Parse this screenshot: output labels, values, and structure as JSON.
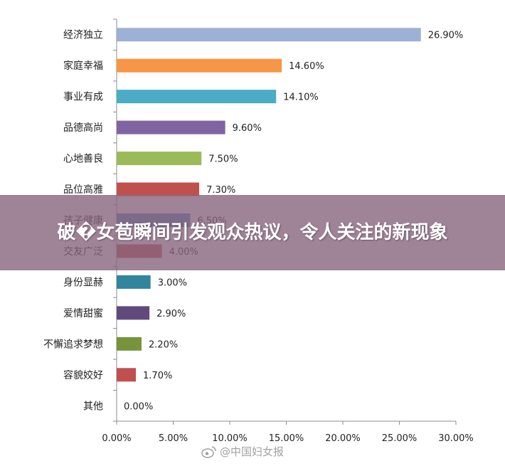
{
  "banner": {
    "title": "破�女苞瞬间引发观众热议，令人关注的新现象"
  },
  "watermark": {
    "text": "@中国妇女报",
    "icon": "weibo-icon"
  },
  "chart_data": {
    "type": "bar",
    "orientation": "horizontal",
    "categories": [
      "经济独立",
      "家庭幸福",
      "事业有成",
      "品德高尚",
      "心地善良",
      "品位高雅",
      "孩子健康",
      "交友广泛",
      "身份显赫",
      "爱情甜蜜",
      "不懈追求梦想",
      "容貌姣好",
      "其他"
    ],
    "values": [
      26.9,
      14.6,
      14.1,
      9.6,
      7.5,
      7.3,
      6.5,
      4.0,
      3.0,
      2.9,
      2.2,
      1.7,
      0.0
    ],
    "value_labels": [
      "26.90%",
      "14.60%",
      "14.10%",
      "9.60%",
      "7.50%",
      "7.30%",
      "6.50%",
      "4.00%",
      "3.00%",
      "2.90%",
      "2.20%",
      "1.70%",
      "0.00%"
    ],
    "colors": [
      "#9DB0D6",
      "#F79646",
      "#4BACC6",
      "#8064A2",
      "#9BBB59",
      "#C0504D",
      "#4F81BD",
      "#C0504D",
      "#31859C",
      "#604A7B",
      "#77933C",
      "#C0504D",
      "#4F81BD"
    ],
    "xlim": [
      0,
      30
    ],
    "xticks": [
      0,
      5,
      10,
      15,
      20,
      25,
      30
    ],
    "xtick_labels": [
      "0.00%",
      "5.00%",
      "10.00%",
      "15.00%",
      "20.00%",
      "25.00%",
      "30.00%"
    ],
    "grid": false,
    "legend": "none"
  }
}
